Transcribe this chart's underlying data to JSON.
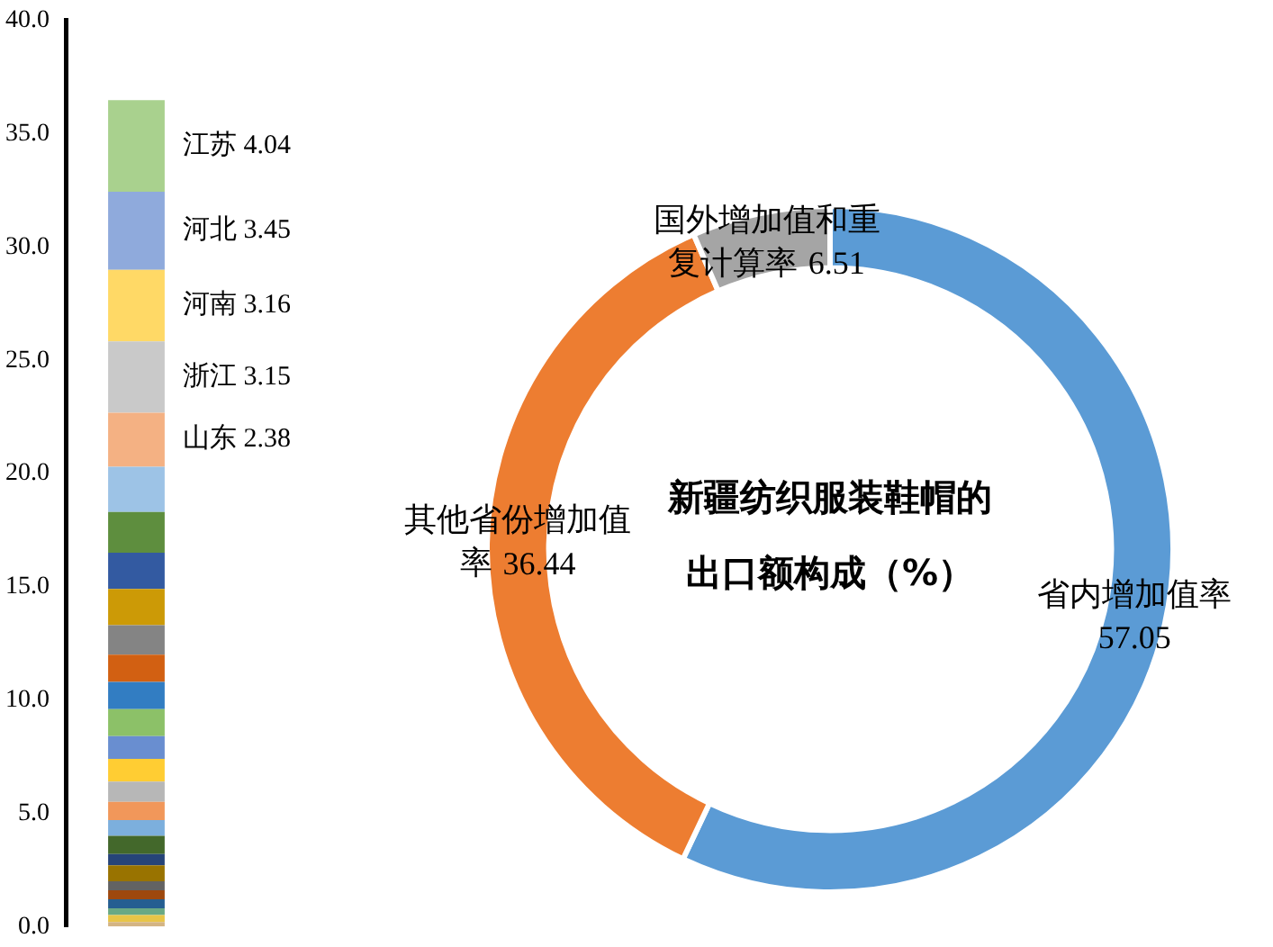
{
  "chart_data": [
    {
      "type": "bar",
      "stacked": true,
      "categories": [
        null
      ],
      "ylim": [
        0,
        40
      ],
      "yticks": [
        {
          "value": 0,
          "label": "0.0"
        },
        {
          "value": 5,
          "label": "5.0"
        },
        {
          "value": 10,
          "label": "10.0"
        },
        {
          "value": 15,
          "label": "15.0"
        },
        {
          "value": 20,
          "label": "20.0"
        },
        {
          "value": 25,
          "label": "25.0"
        },
        {
          "value": 30,
          "label": "30.0"
        },
        {
          "value": 35,
          "label": "35.0"
        },
        {
          "value": 40,
          "label": "40.0"
        }
      ],
      "grid": false,
      "legend": false,
      "tick_labels": "y",
      "series": [
        {
          "color": "#d4b483",
          "values": [
            0.2
          ]
        },
        {
          "color": "#e8c547",
          "values": [
            0.3
          ]
        },
        {
          "color": "#6aa984",
          "values": [
            0.3
          ]
        },
        {
          "color": "#255e91",
          "values": [
            0.4
          ]
        },
        {
          "color": "#9e480e",
          "values": [
            0.4
          ]
        },
        {
          "color": "#636363",
          "values": [
            0.4
          ]
        },
        {
          "color": "#997300",
          "values": [
            0.7
          ]
        },
        {
          "color": "#264478",
          "values": [
            0.5
          ]
        },
        {
          "color": "#43682b",
          "values": [
            0.8
          ]
        },
        {
          "color": "#7cafdd",
          "values": [
            0.7
          ]
        },
        {
          "color": "#f1975a",
          "values": [
            0.8
          ]
        },
        {
          "color": "#b7b7b7",
          "values": [
            0.9
          ]
        },
        {
          "color": "#ffcd33",
          "values": [
            1.0
          ]
        },
        {
          "color": "#698ed0",
          "values": [
            1.0
          ]
        },
        {
          "color": "#8cc168",
          "values": [
            1.2
          ]
        },
        {
          "color": "#327dc2",
          "values": [
            1.2
          ]
        },
        {
          "color": "#d26012",
          "values": [
            1.2
          ]
        },
        {
          "color": "#848484",
          "values": [
            1.3
          ]
        },
        {
          "color": "#cc9a06",
          "values": [
            1.6
          ]
        },
        {
          "color": "#335aa1",
          "values": [
            1.6
          ]
        },
        {
          "color": "#5e8e3e",
          "values": [
            1.8
          ]
        },
        {
          "color": "#9dc3e6",
          "values": [
            2.0
          ]
        },
        {
          "name": "山东",
          "color": "#f4b183",
          "values": [
            2.38
          ],
          "value_labels": [
            "2.38"
          ]
        },
        {
          "name": "浙江",
          "color": "#c9c9c9",
          "values": [
            3.15
          ],
          "value_labels": [
            "3.15"
          ]
        },
        {
          "name": "河南",
          "color": "#ffd966",
          "values": [
            3.16
          ],
          "value_labels": [
            "3.16"
          ]
        },
        {
          "name": "河北",
          "color": "#8faadc",
          "values": [
            3.45
          ],
          "value_labels": [
            "3.45"
          ]
        },
        {
          "name": "江苏",
          "color": "#a9d18e",
          "values": [
            4.04
          ],
          "value_labels": [
            "4.04"
          ]
        }
      ]
    },
    {
      "type": "donut",
      "title": "新疆纺织服装鞋帽的出口额构成（%）",
      "categories": [
        "省内增加值率",
        "其他省份增加值率",
        "国外增加值和重复计算率"
      ],
      "values": [
        57.05,
        36.44,
        6.51
      ],
      "colors": [
        "#5b9bd5",
        "#ed7d31",
        "#a5a5a5"
      ],
      "data_labels": true,
      "legend": false
    }
  ]
}
